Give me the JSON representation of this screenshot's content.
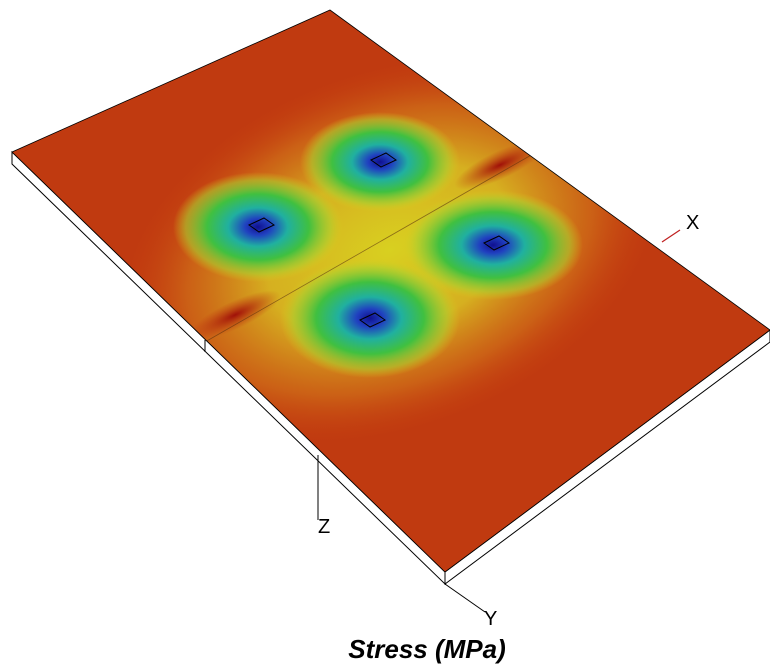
{
  "title": "Stress (MPa)",
  "axes": {
    "x": "X",
    "y": "Y",
    "z": "Z"
  }
}
